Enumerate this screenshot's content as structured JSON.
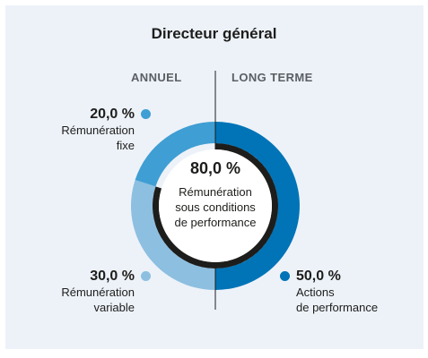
{
  "header": {
    "title": "Directeur général"
  },
  "columns": {
    "left": "ANNUEL",
    "right": "LONG TERME"
  },
  "center": {
    "value": "80,0 %",
    "label": "Rémunération\nsous conditions\nde performance"
  },
  "legend": [
    {
      "value": "20,0 %",
      "label": "Rémunération\nfixe"
    },
    {
      "value": "30,0 %",
      "label": "Rémunération\nvariable"
    },
    {
      "value": "50,0 %",
      "label": "Actions\nde performance"
    }
  ],
  "chart_data": {
    "type": "pie",
    "title": "Directeur général",
    "categories": [
      "Rémunération fixe",
      "Rémunération variable",
      "Actions de performance"
    ],
    "values": [
      20.0,
      30.0,
      50.0
    ],
    "colors": [
      "#3f9ed3",
      "#8dbfe0",
      "#0074b7"
    ],
    "center_value": 80.0,
    "center_arc_color": "#1d1d1b"
  }
}
